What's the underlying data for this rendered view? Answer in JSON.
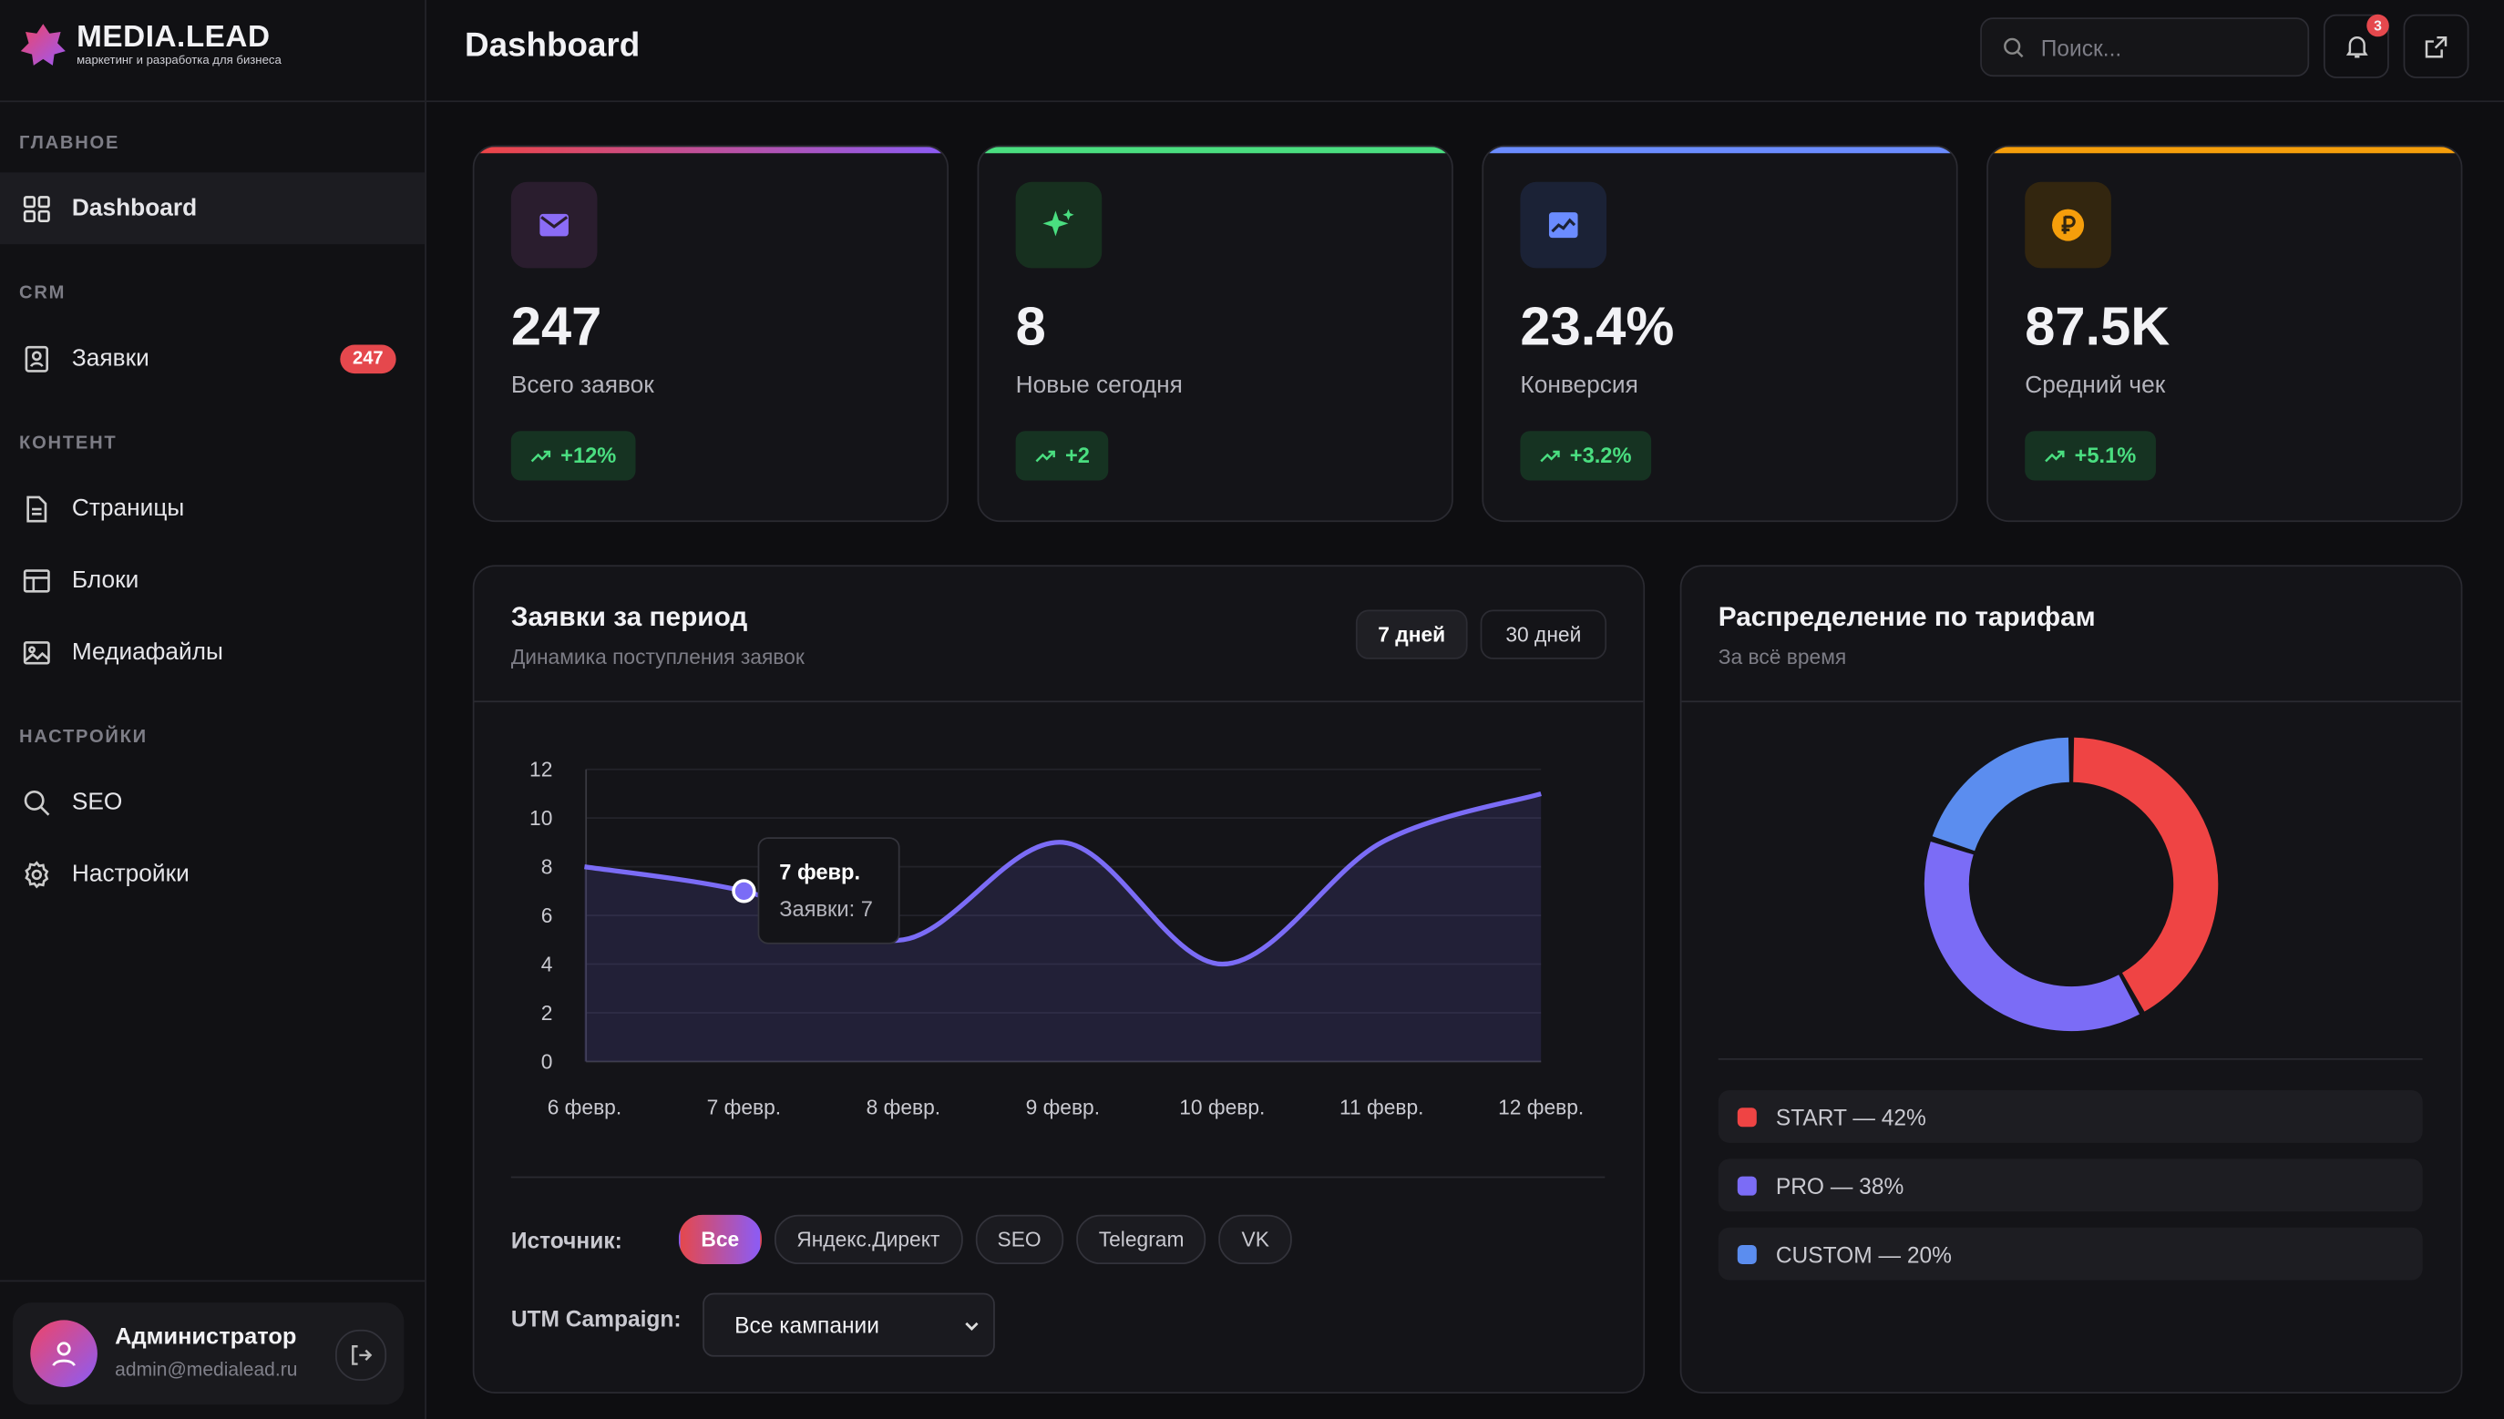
{
  "brand": {
    "name": "MEDIA.LEAD",
    "tagline": "маркетинг и разработка для бизнеса"
  },
  "sidebar": {
    "sections": [
      {
        "title": "ГЛАВНОЕ",
        "items": [
          {
            "label": "Dashboard"
          }
        ]
      },
      {
        "title": "CRM",
        "items": [
          {
            "label": "Заявки",
            "badge": "247"
          }
        ]
      },
      {
        "title": "КОНТЕНТ",
        "items": [
          {
            "label": "Страницы"
          },
          {
            "label": "Блоки"
          },
          {
            "label": "Медиафайлы"
          }
        ]
      },
      {
        "title": "НАСТРОЙКИ",
        "items": [
          {
            "label": "SEO"
          },
          {
            "label": "Настройки"
          }
        ]
      }
    ]
  },
  "user": {
    "name": "Администратор",
    "email": "admin@medialead.ru"
  },
  "header": {
    "title": "Dashboard",
    "search_placeholder": "Поиск...",
    "notifications": "3"
  },
  "stats": [
    {
      "value": "247",
      "label": "Всего заявок",
      "change": "+12%"
    },
    {
      "value": "8",
      "label": "Новые сегодня",
      "change": "+2"
    },
    {
      "value": "23.4%",
      "label": "Конверсия",
      "change": "+3.2%"
    },
    {
      "value": "87.5K",
      "label": "Средний чек",
      "change": "+5.1%"
    }
  ],
  "line_chart": {
    "type": "line",
    "title": "Заявки за период",
    "subtitle": "Динамика поступления заявок",
    "ranges": [
      "7 дней",
      "30 дней"
    ],
    "categories": [
      "6 февр.",
      "7 февр.",
      "8 февр.",
      "9 февр.",
      "10 февр.",
      "11 февр.",
      "12 февр."
    ],
    "values": [
      8,
      7,
      5,
      9,
      4,
      9,
      11
    ],
    "color": "#7b6cf6",
    "ylim": [
      0,
      12
    ],
    "yticks": [
      0,
      2,
      4,
      6,
      8,
      10,
      12
    ],
    "grid": true,
    "tooltip": {
      "title": "7 февр.",
      "text": "Заявки: 7"
    },
    "filters": {
      "source_label": "Источник:",
      "sources": [
        "Все",
        "Яндекс.Директ",
        "SEO",
        "Telegram",
        "VK"
      ],
      "utm_label": "UTM Campaign:",
      "utm_value": "Все кампании"
    }
  },
  "donut_chart": {
    "type": "donut",
    "title": "Распределение по тарифам",
    "subtitle": "За всё время",
    "categories": [
      "START",
      "PRO",
      "CUSTOM"
    ],
    "values": [
      42,
      38,
      20
    ],
    "value_labels": [
      "START — 42%",
      "PRO — 38%",
      "CUSTOM — 20%"
    ],
    "colors": [
      "#ef4444",
      "#7b6cf6",
      "#5b8def"
    ]
  }
}
